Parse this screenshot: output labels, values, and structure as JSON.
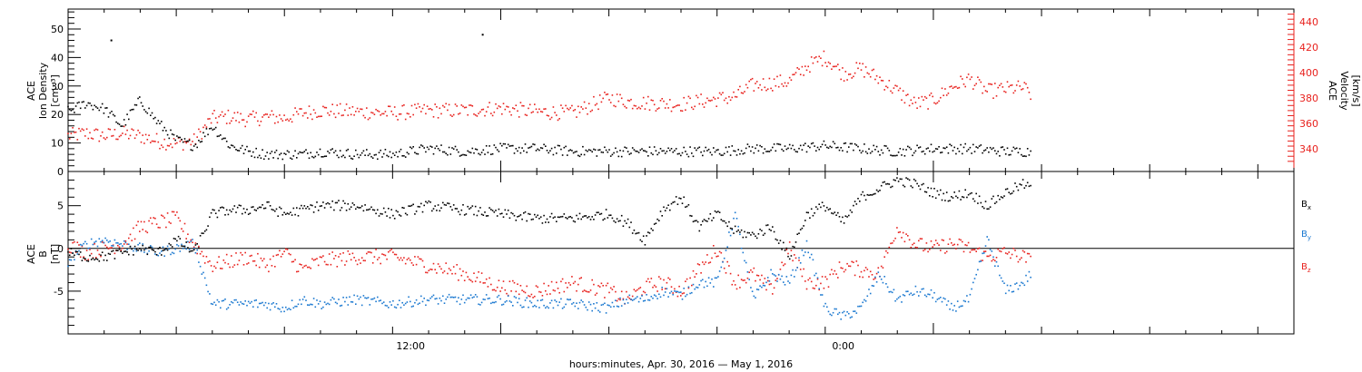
{
  "chart_data": [
    {
      "type": "scatter",
      "panel": "top",
      "xlabel": "hours:minutes, Apr. 30, 2016 — May  1, 2016",
      "x_tick_labels": [
        "12:00",
        "0:00"
      ],
      "x_range_hours": [
        0,
        34
      ],
      "ylabel_left": [
        "ACE",
        "Ion Density",
        "[cm⁻³]"
      ],
      "ylabel_right": [
        "ACE",
        "Velocity",
        "[km/s]"
      ],
      "ylim_left": [
        0,
        57
      ],
      "ylim_right": [
        322,
        450
      ],
      "yticks_left": [
        "0",
        "10",
        "20",
        "30",
        "40",
        "50"
      ],
      "yticks_right": [
        "340",
        "360",
        "380",
        "400",
        "420",
        "440"
      ],
      "grid": false,
      "series": [
        {
          "name": "",
          "axis": "left",
          "color": "#000000",
          "x": [
            0.0,
            0.5,
            1.0,
            1.5,
            2.0,
            2.5,
            3.0,
            3.5,
            4.0,
            4.5,
            5.0,
            5.5,
            6.0,
            6.5,
            7.0,
            8.0,
            9.0,
            10.0,
            11.0,
            12.0,
            13.0,
            14.0,
            15.0,
            16.0,
            17.0,
            18.0,
            19.0,
            20.0,
            21.0,
            22.0,
            23.0,
            24.0,
            25.0,
            26.0,
            26.7
          ],
          "values": [
            21,
            24,
            22,
            16,
            25,
            17,
            11,
            9,
            16,
            9,
            7,
            6,
            6,
            6,
            7,
            6,
            6,
            8,
            7,
            8,
            8,
            7,
            7,
            7,
            7,
            7,
            8,
            8,
            9,
            8,
            7,
            8,
            8,
            7,
            7
          ]
        },
        {
          "name": "",
          "axis": "right",
          "color": "#e8221e",
          "x": [
            0.0,
            0.5,
            1.0,
            1.5,
            2.0,
            2.5,
            3.0,
            3.5,
            4.0,
            4.5,
            5.0,
            5.5,
            6.0,
            6.5,
            7.0,
            8.0,
            9.0,
            10.0,
            11.0,
            12.0,
            13.0,
            14.0,
            15.0,
            15.5,
            16.0,
            17.0,
            18.0,
            18.5,
            19.0,
            20.0,
            20.5,
            21.0,
            21.5,
            22.0,
            22.5,
            23.0,
            23.5,
            24.0,
            24.5,
            25.0,
            25.5,
            26.0,
            26.5,
            26.7
          ],
          "values": [
            350,
            352,
            350,
            352,
            350,
            346,
            344,
            346,
            364,
            365,
            363,
            365,
            364,
            368,
            370,
            369,
            368,
            370,
            370,
            372,
            369,
            368,
            380,
            377,
            376,
            375,
            379,
            381,
            390,
            393,
            405,
            412,
            399,
            403,
            395,
            385,
            375,
            378,
            388,
            395,
            385,
            387,
            388,
            383
          ]
        }
      ],
      "outliers_left": [
        {
          "x": 1.2,
          "y": 46
        },
        {
          "x": 11.5,
          "y": 48
        }
      ]
    },
    {
      "type": "scatter",
      "panel": "bottom",
      "xlabel": "hours:minutes, Apr. 30, 2016 — May  1, 2016",
      "x_tick_labels": [
        "12:00",
        "0:00"
      ],
      "x_range_hours": [
        0,
        34
      ],
      "ylabel_left": [
        "ACE",
        "B",
        "[nT]"
      ],
      "ylim": [
        -10,
        9
      ],
      "yticks": [
        "-5",
        "0",
        "5"
      ],
      "zero_line": true,
      "grid": false,
      "legend_placement": "right",
      "series": [
        {
          "name": "Bx",
          "label_main": "B",
          "label_sub": "x",
          "color": "#000000",
          "x": [
            0.0,
            0.5,
            1.0,
            1.5,
            2.0,
            2.5,
            3.0,
            3.5,
            4.0,
            4.5,
            5.0,
            5.5,
            6.0,
            6.5,
            7.0,
            8.0,
            9.0,
            10.0,
            11.0,
            12.0,
            13.0,
            14.0,
            15.0,
            15.5,
            16.0,
            16.5,
            17.0,
            17.5,
            18.0,
            18.5,
            19.0,
            19.5,
            20.0,
            20.5,
            21.0,
            21.5,
            22.0,
            22.5,
            23.0,
            23.5,
            24.0,
            24.5,
            25.0,
            25.5,
            26.0,
            26.5,
            26.7
          ],
          "values": [
            -0.5,
            -1.0,
            -1.0,
            -0.5,
            0.0,
            -0.5,
            1.0,
            -0.5,
            4.0,
            4.5,
            4.5,
            5.0,
            4.0,
            4.5,
            5.0,
            5.0,
            4.0,
            5.0,
            4.5,
            4.0,
            3.5,
            3.5,
            4.0,
            3.0,
            1.0,
            4.5,
            6.0,
            2.5,
            4.0,
            2.0,
            1.5,
            2.5,
            -1.0,
            4.0,
            5.0,
            3.0,
            6.0,
            7.0,
            8.0,
            7.5,
            6.5,
            6.0,
            6.5,
            5.0,
            6.5,
            7.5,
            7.0
          ]
        },
        {
          "name": "By",
          "label_main": "B",
          "label_sub": "y",
          "color": "#1a78d0",
          "x": [
            0.0,
            0.5,
            1.0,
            1.5,
            2.0,
            2.5,
            3.0,
            3.5,
            4.0,
            4.5,
            5.0,
            5.5,
            6.0,
            6.5,
            7.0,
            8.0,
            9.0,
            10.0,
            11.0,
            12.0,
            13.0,
            14.0,
            15.0,
            15.5,
            16.0,
            16.5,
            17.0,
            17.5,
            18.0,
            18.5,
            19.0,
            19.5,
            20.0,
            20.5,
            21.0,
            21.5,
            22.0,
            22.5,
            23.0,
            23.5,
            24.0,
            24.5,
            25.0,
            25.5,
            26.0,
            26.5,
            26.7
          ],
          "values": [
            -1.5,
            0.5,
            1.0,
            0.5,
            0.0,
            -0.5,
            0.0,
            0.5,
            -6.5,
            -6.5,
            -6.5,
            -6.5,
            -7.0,
            -6.0,
            -6.5,
            -6.0,
            -6.5,
            -6.0,
            -6.0,
            -6.0,
            -6.5,
            -6.5,
            -7.0,
            -6.0,
            -6.0,
            -5.0,
            -5.5,
            -4.0,
            -4.0,
            4.0,
            -6.0,
            -3.0,
            -4.0,
            0.5,
            -7.0,
            -8.0,
            -7.0,
            -3.0,
            -6.0,
            -5.0,
            -5.5,
            -7.0,
            -6.0,
            1.0,
            -5.0,
            -4.0,
            -3.0
          ]
        },
        {
          "name": "Bz",
          "label_main": "B",
          "label_sub": "z",
          "color": "#e8221e",
          "x": [
            0.0,
            0.5,
            1.0,
            1.5,
            2.0,
            2.5,
            3.0,
            3.5,
            4.0,
            4.5,
            5.0,
            5.5,
            6.0,
            6.5,
            7.0,
            8.0,
            9.0,
            10.0,
            11.0,
            12.0,
            13.0,
            14.0,
            15.0,
            15.5,
            16.0,
            16.5,
            17.0,
            17.5,
            18.0,
            18.5,
            19.0,
            19.5,
            20.0,
            20.5,
            21.0,
            21.5,
            22.0,
            22.5,
            23.0,
            23.5,
            24.0,
            24.5,
            25.0,
            25.5,
            26.0,
            26.5,
            26.7
          ],
          "values": [
            0.5,
            -0.5,
            0.0,
            0.5,
            2.5,
            3.0,
            3.5,
            0.5,
            -2.0,
            -1.5,
            -1.0,
            -2.0,
            -0.5,
            -2.5,
            -1.5,
            -1.0,
            -1.0,
            -2.0,
            -3.0,
            -4.5,
            -5.0,
            -4.0,
            -5.0,
            -6.0,
            -4.5,
            -4.0,
            -5.0,
            -2.5,
            0.0,
            -4.0,
            -3.0,
            -5.0,
            0.0,
            -4.0,
            -4.0,
            -2.0,
            -2.5,
            -3.0,
            2.5,
            0.5,
            0.0,
            0.5,
            0.0,
            -1.0,
            -0.5,
            -1.0,
            -1.5
          ]
        }
      ]
    }
  ]
}
